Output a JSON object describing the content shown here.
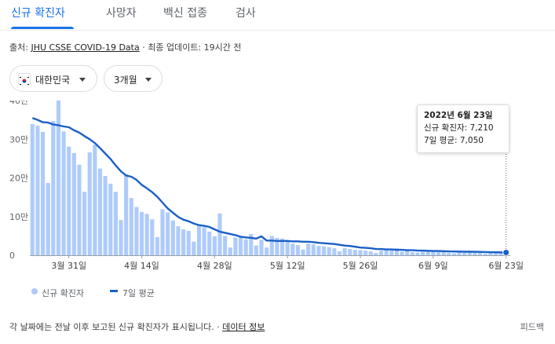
{
  "tabs": [
    {
      "label": "신규 확진자",
      "active": true
    },
    {
      "label": "사망자",
      "active": false
    },
    {
      "label": "백신 접종",
      "active": false
    },
    {
      "label": "검사",
      "active": false
    }
  ],
  "source": {
    "prefix": "출처: ",
    "link": "JHU CSSE COVID-19 Data",
    "updated": " · 최종 업데이트: 19시간 전"
  },
  "filters": {
    "country": "대한민국",
    "country_icon": "south-korea-flag-icon",
    "range": "3개월"
  },
  "colors": {
    "accent": "#1a73e8",
    "bar": "#aecbfa",
    "average_line": "#1a5fc7"
  },
  "tooltip": {
    "date": "2022년 6월 23일",
    "cases": "신규 확진자: 7,210",
    "average": "7일 평균: 7,050"
  },
  "chart_data": {
    "type": "bar",
    "title": "",
    "xlabel": "",
    "ylabel": "",
    "ylim": [
      0,
      400000
    ],
    "yticks": [
      0,
      100000,
      200000,
      300000,
      400000
    ],
    "ytick_labels": [
      "0",
      "10만",
      "20만",
      "30만",
      "40만"
    ],
    "categories": [
      "3월 24일",
      "3월 25일",
      "3월 26일",
      "3월 27일",
      "3월 28일",
      "3월 29일",
      "3월 30일",
      "3월 31일",
      "4월 1일",
      "4월 2일",
      "4월 3일",
      "4월 4일",
      "4월 5일",
      "4월 6일",
      "4월 7일",
      "4월 8일",
      "4월 9일",
      "4월 10일",
      "4월 11일",
      "4월 12일",
      "4월 13일",
      "4월 14일",
      "4월 15일",
      "4월 16일",
      "4월 17일",
      "4월 18일",
      "4월 19일",
      "4월 20일",
      "4월 21일",
      "4월 22일",
      "4월 23일",
      "4월 24일",
      "4월 25일",
      "4월 26일",
      "4월 27일",
      "4월 28일",
      "4월 29일",
      "4월 30일",
      "5월 1일",
      "5월 2일",
      "5월 3일",
      "5월 4일",
      "5월 5일",
      "5월 6일",
      "5월 7일",
      "5월 8일",
      "5월 9일",
      "5월 10일",
      "5월 11일",
      "5월 12일",
      "5월 13일",
      "5월 14일",
      "5월 15일",
      "5월 16일",
      "5월 17일",
      "5월 18일",
      "5월 19일",
      "5월 20일",
      "5월 21일",
      "5월 22일",
      "5월 23일",
      "5월 24일",
      "5월 25일",
      "5월 26일",
      "5월 27일",
      "5월 28일",
      "5월 29일",
      "5월 30일",
      "5월 31일",
      "6월 1일",
      "6월 2일",
      "6월 3일",
      "6월 4일",
      "6월 5일",
      "6월 6일",
      "6월 7일",
      "6월 8일",
      "6월 9일",
      "6월 10일",
      "6월 11일",
      "6월 12일",
      "6월 13일",
      "6월 14일",
      "6월 15일",
      "6월 16일",
      "6월 17일",
      "6월 18일",
      "6월 19일",
      "6월 20일",
      "6월 21일",
      "6월 22일",
      "6월 23일"
    ],
    "xtick_labels": [
      "3월 31일",
      "4월 14일",
      "4월 28일",
      "5월 12일",
      "5월 26일",
      "6월 9일",
      "6월 23일"
    ],
    "series": [
      {
        "name": "신규 확진자",
        "type": "bar",
        "values": [
          339000,
          335000,
          319000,
          187000,
          347000,
          424000,
          320000,
          281000,
          264000,
          234000,
          164000,
          266000,
          286000,
          224000,
          205000,
          185000,
          164000,
          91000,
          210000,
          148000,
          125000,
          112000,
          107000,
          93000,
          47000,
          119000,
          111000,
          90000,
          75000,
          67000,
          63000,
          35000,
          77000,
          72000,
          61000,
          49000,
          108000,
          50000,
          20000,
          46000,
          48000,
          41000,
          55000,
          25000,
          40000,
          20000,
          50000,
          45000,
          43000,
          35000,
          30000,
          26000,
          15000,
          30000,
          28000,
          24000,
          23000,
          21000,
          18000,
          10000,
          18000,
          16000,
          14000,
          13000,
          12000,
          10000,
          6000,
          12000,
          14000,
          13000,
          18000,
          9500,
          13000,
          8000,
          7000,
          9000,
          12000,
          10000,
          9000,
          8000,
          6000,
          5000,
          8000,
          10000,
          9000,
          8000,
          7000,
          4000,
          6000,
          9000,
          8000,
          7210
        ]
      },
      {
        "name": "7일 평균",
        "type": "line",
        "values": [
          355000,
          350000,
          344000,
          343000,
          338000,
          336000,
          333000,
          331000,
          323000,
          317000,
          308000,
          300000,
          290000,
          277000,
          263000,
          249000,
          232000,
          217000,
          206000,
          203000,
          195000,
          182000,
          173000,
          163000,
          151000,
          136000,
          121000,
          110000,
          99000,
          92000,
          88000,
          82000,
          78000,
          76000,
          73000,
          67000,
          61000,
          58000,
          55000,
          52000,
          48000,
          46000,
          45000,
          43000,
          49000,
          38000,
          38000,
          37000,
          37000,
          37000,
          36000,
          36000,
          35000,
          35000,
          34000,
          32000,
          31000,
          30000,
          29000,
          27000,
          25000,
          24000,
          22000,
          20000,
          19000,
          18000,
          16000,
          16000,
          15000,
          15000,
          14000,
          14000,
          13000,
          13000,
          12000,
          12000,
          11500,
          11000,
          11000,
          10500,
          10000,
          9800,
          9600,
          9400,
          9200,
          9000,
          8700,
          8400,
          8000,
          7800,
          7500,
          7050
        ]
      }
    ],
    "legend_position": "bottom",
    "grid": false
  },
  "legend": {
    "cases_label": "신규 확진자",
    "average_label": "7일 평균"
  },
  "footer": {
    "note": "각 날짜에는 전날 이후 보고된 신규 확진자가 표시됩니다.",
    "separator": " · ",
    "link": "데이터 정보",
    "feedback": "피드백"
  }
}
